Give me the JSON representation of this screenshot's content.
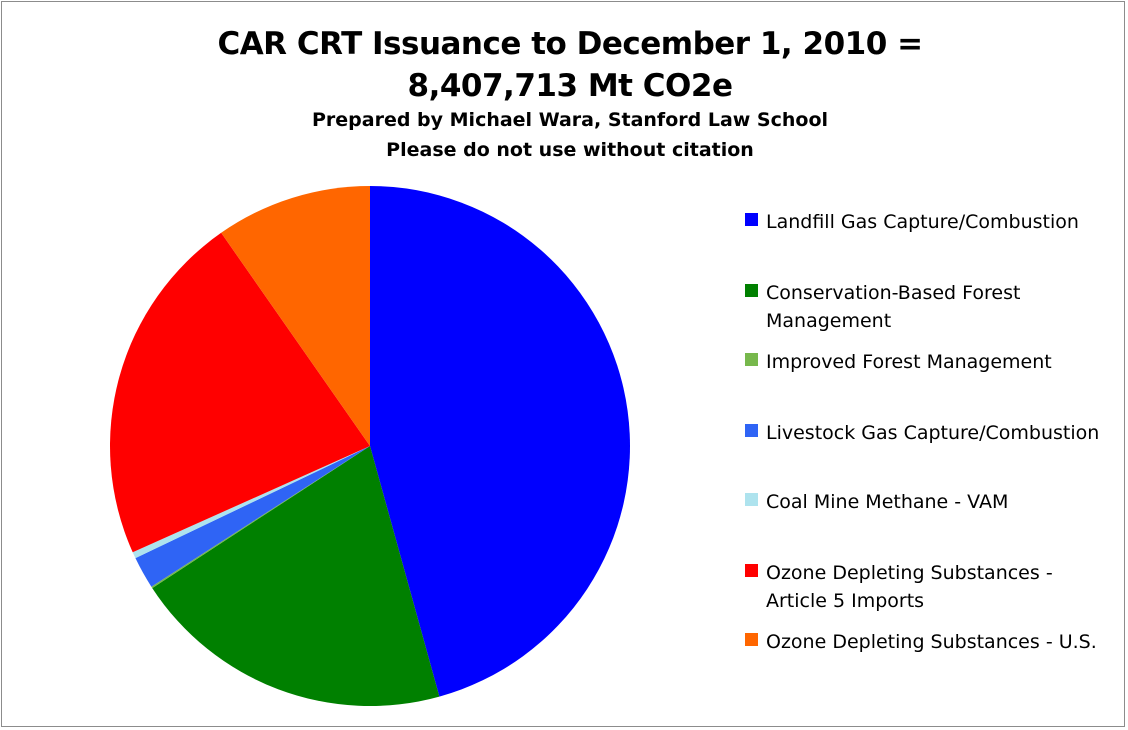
{
  "chart_data": {
    "type": "pie",
    "title": "CAR CRT Issuance to December 1, 2010 = 8,407,713 Mt CO2e",
    "title_lines": [
      "CAR CRT Issuance to December 1, 2010 =",
      "8,407,713 Mt CO2e"
    ],
    "subtitle_lines": [
      "Prepared by Michael Wara, Stanford Law School",
      "Please do not use without citation"
    ],
    "legend_position": "right",
    "series": [
      {
        "name": "Landfill Gas Capture/Combustion",
        "value": 45.7,
        "color": "#0000ff"
      },
      {
        "name": "Conservation-Based Forest Management",
        "value": 20.1,
        "color": "#008000"
      },
      {
        "name": "Improved Forest Management",
        "value": 0.1,
        "color": "#77b84c"
      },
      {
        "name": "Livestock Gas Capture/Combustion",
        "value": 2.0,
        "color": "#2f64f5"
      },
      {
        "name": "Coal Mine Methane - VAM",
        "value": 0.4,
        "color": "#aee3ee"
      },
      {
        "name": "Ozone Depleting Substances - Article 5 Imports",
        "value": 22.0,
        "color": "#ff0000"
      },
      {
        "name": "Ozone Depleting Substances - U.S.",
        "value": 9.7,
        "color": "#ff6600"
      }
    ]
  }
}
